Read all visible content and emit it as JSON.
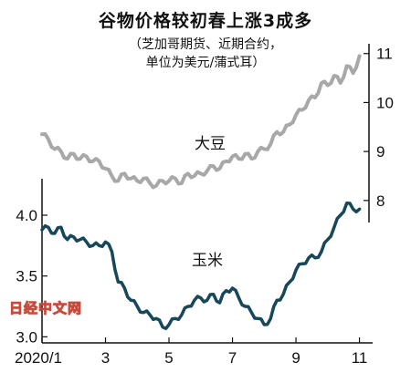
{
  "chart_data": {
    "type": "line",
    "title": "谷物价格较初春上涨3成多",
    "subtitle_line1": "（芝加哥期货、近期合约，",
    "subtitle_line2": "单位为美元/蒲式耳）",
    "x_tick_labels": [
      "2020/1",
      "3",
      "5",
      "7",
      "9",
      "11"
    ],
    "x_tick_months": [
      1,
      3,
      5,
      7,
      9,
      11
    ],
    "x_range": [
      1,
      11.3
    ],
    "left_axis": {
      "ticks": [
        "4.0",
        "3.5",
        "3.0"
      ],
      "tick_values": [
        4.0,
        3.5,
        3.0
      ],
      "range": [
        2.95,
        4.3
      ]
    },
    "right_axis": {
      "ticks": [
        "11",
        "10",
        "9",
        "8"
      ],
      "tick_values": [
        11,
        10,
        9,
        8
      ],
      "range": [
        7.55,
        11.2
      ]
    },
    "series": [
      {
        "name": "大豆",
        "axis": "right",
        "color": "#a8a8a8",
        "x": [
          1.0,
          1.2,
          1.4,
          1.6,
          1.8,
          2.0,
          2.2,
          2.4,
          2.6,
          2.8,
          3.0,
          3.2,
          3.4,
          3.6,
          3.8,
          4.0,
          4.2,
          4.4,
          4.6,
          4.8,
          5.0,
          5.2,
          5.4,
          5.6,
          5.8,
          6.0,
          6.2,
          6.4,
          6.6,
          6.8,
          7.0,
          7.2,
          7.4,
          7.6,
          7.8,
          8.0,
          8.2,
          8.4,
          8.6,
          8.8,
          9.0,
          9.2,
          9.4,
          9.6,
          9.8,
          10.0,
          10.2,
          10.4,
          10.6,
          10.8,
          11.0
        ],
        "values": [
          9.35,
          9.25,
          9.05,
          9.0,
          8.85,
          8.95,
          8.85,
          8.9,
          8.8,
          8.8,
          8.65,
          8.5,
          8.4,
          8.55,
          8.45,
          8.4,
          8.45,
          8.35,
          8.3,
          8.4,
          8.4,
          8.45,
          8.35,
          8.55,
          8.5,
          8.55,
          8.6,
          8.7,
          8.65,
          8.8,
          8.9,
          8.85,
          8.95,
          8.85,
          9.0,
          9.05,
          9.15,
          9.4,
          9.4,
          9.55,
          9.75,
          9.85,
          10.05,
          10.1,
          10.4,
          10.35,
          10.55,
          10.4,
          10.75,
          10.6,
          10.95
        ]
      },
      {
        "name": "玉米",
        "axis": "left",
        "color": "#16485a",
        "x": [
          1.0,
          1.2,
          1.4,
          1.6,
          1.8,
          2.0,
          2.2,
          2.4,
          2.6,
          2.8,
          3.0,
          3.2,
          3.4,
          3.6,
          3.8,
          4.0,
          4.2,
          4.4,
          4.6,
          4.8,
          5.0,
          5.2,
          5.4,
          5.6,
          5.8,
          6.0,
          6.2,
          6.4,
          6.6,
          6.8,
          7.0,
          7.2,
          7.4,
          7.6,
          7.8,
          8.0,
          8.2,
          8.4,
          8.6,
          8.8,
          9.0,
          9.2,
          9.4,
          9.6,
          9.8,
          10.0,
          10.2,
          10.4,
          10.6,
          10.8,
          11.0
        ],
        "values": [
          3.88,
          3.9,
          3.85,
          3.9,
          3.8,
          3.82,
          3.8,
          3.78,
          3.75,
          3.75,
          3.78,
          3.7,
          3.45,
          3.4,
          3.3,
          3.25,
          3.2,
          3.18,
          3.15,
          3.08,
          3.1,
          3.15,
          3.18,
          3.25,
          3.3,
          3.32,
          3.3,
          3.35,
          3.28,
          3.38,
          3.4,
          3.32,
          3.25,
          3.2,
          3.15,
          3.1,
          3.15,
          3.3,
          3.35,
          3.45,
          3.55,
          3.6,
          3.65,
          3.65,
          3.7,
          3.8,
          3.9,
          4.0,
          4.1,
          4.05,
          4.05
        ]
      }
    ]
  },
  "watermark": "日经中文网"
}
